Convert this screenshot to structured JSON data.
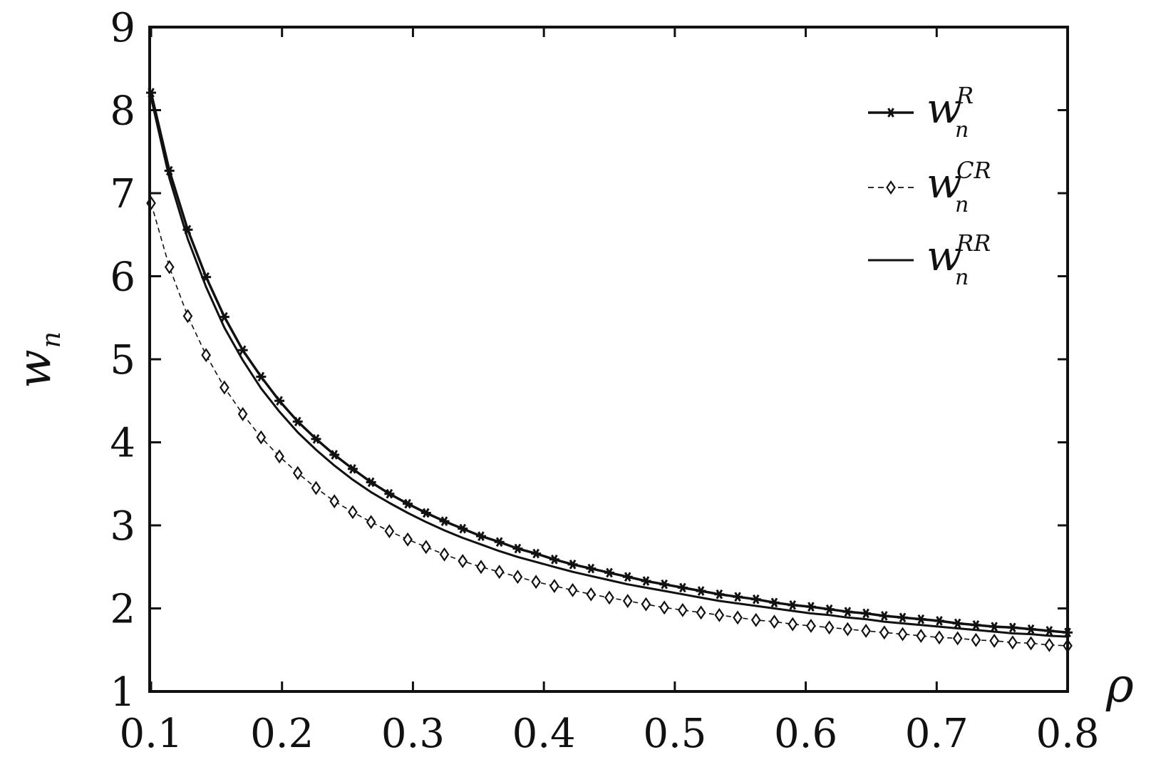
{
  "chart_data": {
    "type": "line",
    "xlabel": "ρ",
    "ylabel": "w",
    "ylabel_subscript": "n",
    "xlim": [
      0.1,
      0.8
    ],
    "ylim": [
      1,
      9
    ],
    "xticks": [
      "0.1",
      "0.2",
      "0.3",
      "0.4",
      "0.5",
      "0.6",
      "0.7",
      "0.8"
    ],
    "yticks": [
      "1",
      "2",
      "3",
      "4",
      "5",
      "6",
      "7",
      "8",
      "9"
    ],
    "grid": false,
    "legend_position": "top-right",
    "series": [
      {
        "name": "w_n^R",
        "legend_base": "w",
        "legend_sub": "n",
        "legend_sup": "R",
        "style": "solid-star",
        "x": [
          0.1,
          0.114,
          0.128,
          0.142,
          0.156,
          0.17,
          0.184,
          0.198,
          0.212,
          0.226,
          0.24,
          0.254,
          0.268,
          0.282,
          0.296,
          0.31,
          0.324,
          0.338,
          0.352,
          0.366,
          0.38,
          0.394,
          0.408,
          0.422,
          0.436,
          0.45,
          0.464,
          0.478,
          0.492,
          0.506,
          0.52,
          0.534,
          0.548,
          0.562,
          0.576,
          0.59,
          0.604,
          0.618,
          0.632,
          0.646,
          0.66,
          0.674,
          0.688,
          0.702,
          0.716,
          0.73,
          0.744,
          0.758,
          0.772,
          0.786,
          0.8
        ],
        "y": [
          8.21,
          7.27,
          6.56,
          5.99,
          5.51,
          5.11,
          4.79,
          4.5,
          4.25,
          4.04,
          3.85,
          3.68,
          3.52,
          3.38,
          3.26,
          3.15,
          3.05,
          2.96,
          2.87,
          2.8,
          2.72,
          2.66,
          2.59,
          2.53,
          2.48,
          2.43,
          2.38,
          2.33,
          2.29,
          2.25,
          2.21,
          2.17,
          2.14,
          2.11,
          2.07,
          2.04,
          2.02,
          1.99,
          1.96,
          1.94,
          1.91,
          1.89,
          1.87,
          1.85,
          1.82,
          1.8,
          1.78,
          1.77,
          1.75,
          1.73,
          1.71
        ]
      },
      {
        "name": "w_n^CR",
        "legend_base": "w",
        "legend_sub": "n",
        "legend_sup": "CR",
        "style": "dashed-diamond",
        "x": [
          0.1,
          0.114,
          0.128,
          0.142,
          0.156,
          0.17,
          0.184,
          0.198,
          0.212,
          0.226,
          0.24,
          0.254,
          0.268,
          0.282,
          0.296,
          0.31,
          0.324,
          0.338,
          0.352,
          0.366,
          0.38,
          0.394,
          0.408,
          0.422,
          0.436,
          0.45,
          0.464,
          0.478,
          0.492,
          0.506,
          0.52,
          0.534,
          0.548,
          0.562,
          0.576,
          0.59,
          0.604,
          0.618,
          0.632,
          0.646,
          0.66,
          0.674,
          0.688,
          0.702,
          0.716,
          0.73,
          0.744,
          0.758,
          0.772,
          0.786,
          0.8
        ],
        "y": [
          6.88,
          6.11,
          5.52,
          5.05,
          4.66,
          4.34,
          4.06,
          3.83,
          3.63,
          3.45,
          3.29,
          3.16,
          3.04,
          2.93,
          2.83,
          2.74,
          2.65,
          2.57,
          2.5,
          2.44,
          2.38,
          2.32,
          2.27,
          2.22,
          2.17,
          2.13,
          2.09,
          2.05,
          2.01,
          1.98,
          1.95,
          1.92,
          1.89,
          1.86,
          1.84,
          1.81,
          1.79,
          1.77,
          1.75,
          1.73,
          1.71,
          1.69,
          1.67,
          1.65,
          1.64,
          1.62,
          1.61,
          1.59,
          1.58,
          1.56,
          1.55
        ]
      },
      {
        "name": "w_n^RR",
        "legend_base": "w",
        "legend_sub": "n",
        "legend_sup": "RR",
        "style": "solid",
        "x": [
          0.1,
          0.114,
          0.128,
          0.142,
          0.156,
          0.17,
          0.184,
          0.198,
          0.212,
          0.226,
          0.24,
          0.254,
          0.268,
          0.282,
          0.296,
          0.31,
          0.324,
          0.338,
          0.352,
          0.366,
          0.38,
          0.394,
          0.408,
          0.422,
          0.436,
          0.45,
          0.464,
          0.478,
          0.492,
          0.506,
          0.52,
          0.534,
          0.548,
          0.562,
          0.576,
          0.59,
          0.604,
          0.618,
          0.632,
          0.646,
          0.66,
          0.674,
          0.688,
          0.702,
          0.716,
          0.73,
          0.744,
          0.758,
          0.772,
          0.786,
          0.8
        ],
        "y": [
          8.15,
          7.18,
          6.45,
          5.87,
          5.38,
          4.99,
          4.65,
          4.37,
          4.12,
          3.91,
          3.72,
          3.55,
          3.4,
          3.27,
          3.15,
          3.04,
          2.94,
          2.85,
          2.77,
          2.69,
          2.62,
          2.56,
          2.5,
          2.44,
          2.39,
          2.34,
          2.29,
          2.25,
          2.21,
          2.17,
          2.13,
          2.09,
          2.06,
          2.03,
          2.0,
          1.97,
          1.94,
          1.92,
          1.89,
          1.87,
          1.84,
          1.82,
          1.8,
          1.78,
          1.76,
          1.74,
          1.72,
          1.7,
          1.69,
          1.67,
          1.66
        ]
      }
    ]
  }
}
